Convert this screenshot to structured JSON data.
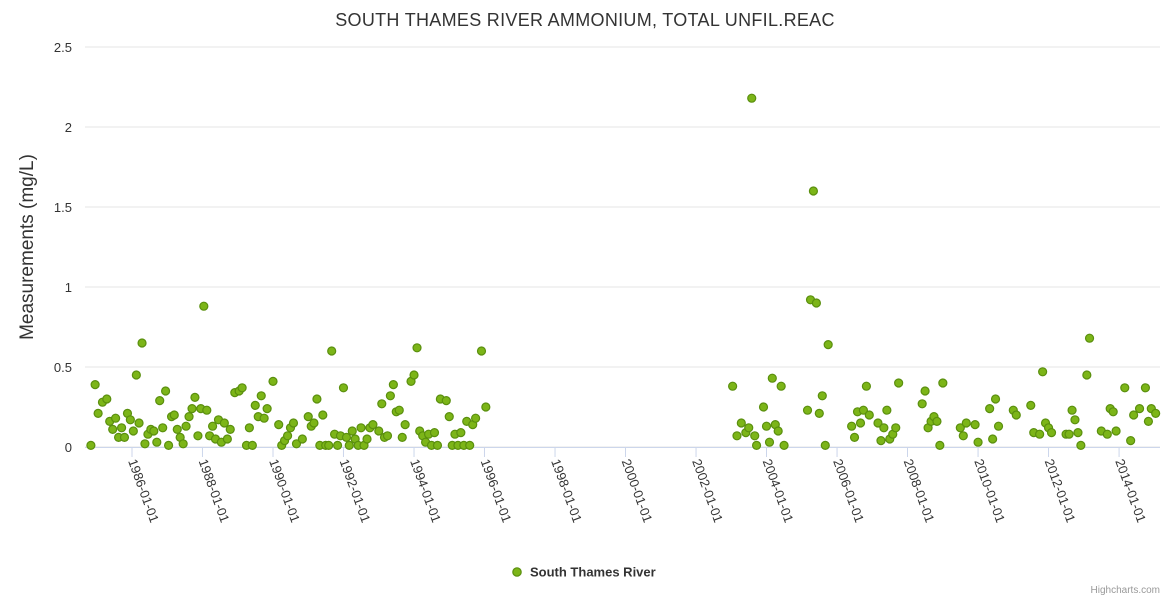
{
  "chart_data": {
    "type": "scatter",
    "title": "SOUTH THAMES RIVER AMMONIUM, TOTAL UNFIL.REAC",
    "xlabel": "",
    "ylabel": "Measurements (mg/L)",
    "x_axis_type": "date",
    "xlim": [
      "1984-09-01",
      "2015-03-01"
    ],
    "ylim": [
      0,
      2.5
    ],
    "x_ticks": [
      "1986-01-01",
      "1988-01-01",
      "1990-01-01",
      "1992-01-01",
      "1994-01-01",
      "1996-01-01",
      "1998-01-01",
      "2000-01-01",
      "2002-01-01",
      "2004-01-01",
      "2006-01-01",
      "2008-01-01",
      "2010-01-01",
      "2012-01-01",
      "2014-01-01"
    ],
    "y_ticks": [
      "0",
      "0.5",
      "1",
      "1.5",
      "2",
      "2.5"
    ],
    "grid": "horizontal",
    "legend_position": "bottom-center",
    "series": [
      {
        "name": "South Thames River",
        "color": "#7cb518",
        "points": [
          [
            "1984-11-01",
            0.01
          ],
          [
            "1984-12-15",
            0.39
          ],
          [
            "1985-01-15",
            0.21
          ],
          [
            "1985-03-01",
            0.28
          ],
          [
            "1985-04-15",
            0.3
          ],
          [
            "1985-05-15",
            0.16
          ],
          [
            "1985-06-15",
            0.11
          ],
          [
            "1985-07-15",
            0.18
          ],
          [
            "1985-08-15",
            0.06
          ],
          [
            "1985-09-15",
            0.12
          ],
          [
            "1985-10-15",
            0.06
          ],
          [
            "1985-11-15",
            0.21
          ],
          [
            "1985-12-15",
            0.17
          ],
          [
            "1986-01-15",
            0.1
          ],
          [
            "1986-02-15",
            0.45
          ],
          [
            "1986-03-15",
            0.15
          ],
          [
            "1986-04-15",
            0.65
          ],
          [
            "1986-05-15",
            0.02
          ],
          [
            "1986-06-15",
            0.08
          ],
          [
            "1986-07-15",
            0.11
          ],
          [
            "1986-08-15",
            0.1
          ],
          [
            "1986-09-15",
            0.03
          ],
          [
            "1986-10-15",
            0.29
          ],
          [
            "1986-11-15",
            0.12
          ],
          [
            "1986-12-15",
            0.35
          ],
          [
            "1987-01-15",
            0.01
          ],
          [
            "1987-02-15",
            0.19
          ],
          [
            "1987-03-15",
            0.2
          ],
          [
            "1987-04-15",
            0.11
          ],
          [
            "1987-05-15",
            0.06
          ],
          [
            "1987-06-15",
            0.02
          ],
          [
            "1987-07-15",
            0.13
          ],
          [
            "1987-08-15",
            0.19
          ],
          [
            "1987-09-15",
            0.24
          ],
          [
            "1987-10-15",
            0.31
          ],
          [
            "1987-11-15",
            0.07
          ],
          [
            "1987-12-15",
            0.24
          ],
          [
            "1988-01-15",
            0.88
          ],
          [
            "1988-02-15",
            0.23
          ],
          [
            "1988-03-15",
            0.07
          ],
          [
            "1988-04-15",
            0.13
          ],
          [
            "1988-05-15",
            0.05
          ],
          [
            "1988-06-15",
            0.17
          ],
          [
            "1988-07-15",
            0.03
          ],
          [
            "1988-08-15",
            0.15
          ],
          [
            "1988-09-15",
            0.05
          ],
          [
            "1988-10-15",
            0.11
          ],
          [
            "1988-12-01",
            0.34
          ],
          [
            "1989-01-15",
            0.35
          ],
          [
            "1989-02-15",
            0.37
          ],
          [
            "1989-04-01",
            0.01
          ],
          [
            "1989-05-01",
            0.12
          ],
          [
            "1989-06-01",
            0.01
          ],
          [
            "1989-07-01",
            0.26
          ],
          [
            "1989-08-01",
            0.19
          ],
          [
            "1989-09-01",
            0.32
          ],
          [
            "1989-10-01",
            0.18
          ],
          [
            "1989-11-01",
            0.24
          ],
          [
            "1990-01-01",
            0.41
          ],
          [
            "1990-03-01",
            0.14
          ],
          [
            "1990-04-01",
            0.01
          ],
          [
            "1990-05-01",
            0.04
          ],
          [
            "1990-06-01",
            0.07
          ],
          [
            "1990-07-01",
            0.12
          ],
          [
            "1990-08-01",
            0.15
          ],
          [
            "1990-09-01",
            0.02
          ],
          [
            "1990-11-01",
            0.05
          ],
          [
            "1991-01-01",
            0.19
          ],
          [
            "1991-02-01",
            0.13
          ],
          [
            "1991-03-01",
            0.15
          ],
          [
            "1991-04-01",
            0.3
          ],
          [
            "1991-05-01",
            0.01
          ],
          [
            "1991-06-01",
            0.2
          ],
          [
            "1991-07-01",
            0.01
          ],
          [
            "1991-08-01",
            0.01
          ],
          [
            "1991-09-01",
            0.6
          ],
          [
            "1991-10-01",
            0.08
          ],
          [
            "1991-11-01",
            0.01
          ],
          [
            "1991-12-01",
            0.07
          ],
          [
            "1992-01-01",
            0.37
          ],
          [
            "1992-02-01",
            0.06
          ],
          [
            "1992-03-01",
            0.01
          ],
          [
            "1992-04-01",
            0.1
          ],
          [
            "1992-05-01",
            0.05
          ],
          [
            "1992-06-01",
            0.01
          ],
          [
            "1992-07-01",
            0.12
          ],
          [
            "1992-08-01",
            0.01
          ],
          [
            "1992-09-01",
            0.05
          ],
          [
            "1992-10-01",
            0.12
          ],
          [
            "1992-11-01",
            0.14
          ],
          [
            "1993-01-01",
            0.1
          ],
          [
            "1993-02-01",
            0.27
          ],
          [
            "1993-03-01",
            0.06
          ],
          [
            "1993-04-01",
            0.07
          ],
          [
            "1993-05-01",
            0.32
          ],
          [
            "1993-06-01",
            0.39
          ],
          [
            "1993-07-01",
            0.22
          ],
          [
            "1993-08-01",
            0.23
          ],
          [
            "1993-09-01",
            0.06
          ],
          [
            "1993-10-01",
            0.14
          ],
          [
            "1993-12-01",
            0.41
          ],
          [
            "1994-01-01",
            0.45
          ],
          [
            "1994-02-01",
            0.62
          ],
          [
            "1994-03-01",
            0.1
          ],
          [
            "1994-04-01",
            0.07
          ],
          [
            "1994-05-01",
            0.03
          ],
          [
            "1994-06-01",
            0.08
          ],
          [
            "1994-07-01",
            0.01
          ],
          [
            "1994-08-01",
            0.09
          ],
          [
            "1994-09-01",
            0.01
          ],
          [
            "1994-10-01",
            0.3
          ],
          [
            "1994-12-01",
            0.29
          ],
          [
            "1995-01-01",
            0.19
          ],
          [
            "1995-02-01",
            0.01
          ],
          [
            "1995-03-01",
            0.08
          ],
          [
            "1995-04-01",
            0.01
          ],
          [
            "1995-05-01",
            0.09
          ],
          [
            "1995-06-01",
            0.01
          ],
          [
            "1995-07-01",
            0.16
          ],
          [
            "1995-08-01",
            0.01
          ],
          [
            "1995-09-01",
            0.14
          ],
          [
            "1995-10-01",
            0.18
          ],
          [
            "1995-12-01",
            0.6
          ],
          [
            "1996-01-15",
            0.25
          ],
          [
            "2003-01-15",
            0.38
          ],
          [
            "2003-03-01",
            0.07
          ],
          [
            "2003-04-15",
            0.15
          ],
          [
            "2003-06-01",
            0.09
          ],
          [
            "2003-07-01",
            0.12
          ],
          [
            "2003-08-01",
            2.18
          ],
          [
            "2003-09-01",
            0.07
          ],
          [
            "2003-09-20",
            0.01
          ],
          [
            "2003-12-01",
            0.25
          ],
          [
            "2004-01-01",
            0.13
          ],
          [
            "2004-02-01",
            0.03
          ],
          [
            "2004-03-01",
            0.43
          ],
          [
            "2004-04-01",
            0.14
          ],
          [
            "2004-05-01",
            0.1
          ],
          [
            "2004-06-01",
            0.38
          ],
          [
            "2004-07-01",
            0.01
          ],
          [
            "2005-03-01",
            0.23
          ],
          [
            "2005-04-01",
            0.92
          ],
          [
            "2005-05-01",
            1.6
          ],
          [
            "2005-06-01",
            0.9
          ],
          [
            "2005-07-01",
            0.21
          ],
          [
            "2005-08-01",
            0.32
          ],
          [
            "2005-09-01",
            0.01
          ],
          [
            "2005-10-01",
            0.64
          ],
          [
            "2006-06-01",
            0.13
          ],
          [
            "2006-07-01",
            0.06
          ],
          [
            "2006-08-01",
            0.22
          ],
          [
            "2006-09-01",
            0.15
          ],
          [
            "2006-10-01",
            0.23
          ],
          [
            "2006-11-01",
            0.38
          ],
          [
            "2006-12-01",
            0.2
          ],
          [
            "2007-03-01",
            0.15
          ],
          [
            "2007-04-01",
            0.04
          ],
          [
            "2007-05-01",
            0.12
          ],
          [
            "2007-06-01",
            0.23
          ],
          [
            "2007-07-01",
            0.05
          ],
          [
            "2007-08-01",
            0.08
          ],
          [
            "2007-09-01",
            0.12
          ],
          [
            "2007-10-01",
            0.4
          ],
          [
            "2008-06-01",
            0.27
          ],
          [
            "2008-07-01",
            0.35
          ],
          [
            "2008-08-01",
            0.12
          ],
          [
            "2008-09-01",
            0.16
          ],
          [
            "2008-10-01",
            0.19
          ],
          [
            "2008-11-01",
            0.16
          ],
          [
            "2008-12-01",
            0.01
          ],
          [
            "2009-01-01",
            0.4
          ],
          [
            "2009-07-01",
            0.12
          ],
          [
            "2009-08-01",
            0.07
          ],
          [
            "2009-09-01",
            0.15
          ],
          [
            "2009-12-01",
            0.14
          ],
          [
            "2010-01-01",
            0.03
          ],
          [
            "2010-05-01",
            0.24
          ],
          [
            "2010-06-01",
            0.05
          ],
          [
            "2010-07-01",
            0.3
          ],
          [
            "2010-08-01",
            0.13
          ],
          [
            "2011-01-01",
            0.23
          ],
          [
            "2011-02-01",
            0.2
          ],
          [
            "2011-07-01",
            0.26
          ],
          [
            "2011-08-01",
            0.09
          ],
          [
            "2011-10-01",
            0.08
          ],
          [
            "2011-11-01",
            0.47
          ],
          [
            "2011-12-01",
            0.15
          ],
          [
            "2012-01-01",
            0.12
          ],
          [
            "2012-02-01",
            0.09
          ],
          [
            "2012-07-01",
            0.08
          ],
          [
            "2012-08-01",
            0.08
          ],
          [
            "2012-09-01",
            0.23
          ],
          [
            "2012-10-01",
            0.17
          ],
          [
            "2012-11-01",
            0.09
          ],
          [
            "2012-12-01",
            0.01
          ],
          [
            "2013-02-01",
            0.45
          ],
          [
            "2013-03-01",
            0.68
          ],
          [
            "2013-07-01",
            0.1
          ],
          [
            "2013-09-01",
            0.08
          ],
          [
            "2013-10-01",
            0.24
          ],
          [
            "2013-11-01",
            0.22
          ],
          [
            "2013-12-01",
            0.1
          ],
          [
            "2014-03-01",
            0.37
          ],
          [
            "2014-05-01",
            0.04
          ],
          [
            "2014-06-01",
            0.2
          ],
          [
            "2014-08-01",
            0.24
          ],
          [
            "2014-10-01",
            0.37
          ],
          [
            "2014-11-01",
            0.16
          ],
          [
            "2014-12-01",
            0.24
          ],
          [
            "2015-01-15",
            0.21
          ]
        ]
      }
    ]
  },
  "legend": {
    "items": [
      {
        "label": "South Thames River",
        "color": "#7cb518"
      }
    ]
  },
  "credits": "Highcharts.com"
}
